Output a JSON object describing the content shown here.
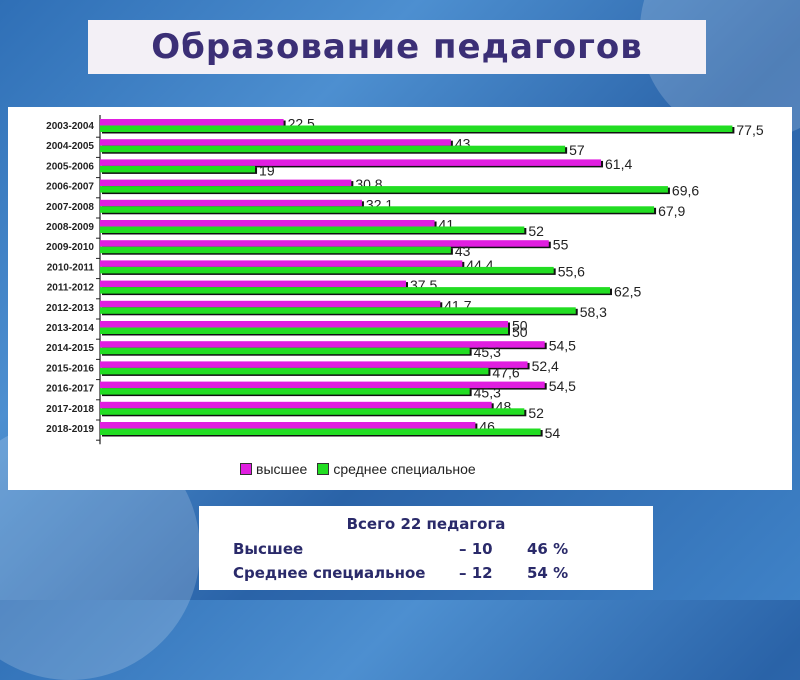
{
  "title": "Образование педагогов",
  "chart_data": {
    "type": "bar",
    "orientation": "horizontal",
    "categories": [
      "2003-2004",
      "2004-2005",
      "2005-2006",
      "2006-2007",
      "2007-2008",
      "2008-2009",
      "2009-2010",
      "2010-2011",
      "2011-2012",
      "2012-2013",
      "2013-2014",
      "2014-2015",
      "2015-2016",
      "2016-2017",
      "2017-2018",
      "2018-2019"
    ],
    "series": [
      {
        "name": "высшее",
        "color": "#e01ee0",
        "values": [
          22.5,
          43,
          61.4,
          30.8,
          32.1,
          41,
          55,
          44.4,
          37.5,
          41.7,
          50,
          54.5,
          52.4,
          54.5,
          48,
          46
        ],
        "labels": [
          "22,5",
          "43",
          "61,4",
          "30,8",
          "32,1",
          "41",
          "55",
          "44,4",
          "37,5",
          "41,7",
          "50",
          "54,5",
          "52,4",
          "54,5",
          "48",
          "46"
        ]
      },
      {
        "name": "среднее специальное",
        "color": "#22dd22",
        "values": [
          77.5,
          57,
          19,
          69.6,
          67.9,
          52,
          43,
          55.6,
          62.5,
          58.3,
          50,
          45.3,
          47.6,
          45.3,
          52,
          54
        ],
        "labels": [
          "77,5",
          "57",
          "19",
          "69,6",
          "67,9",
          "52",
          "43",
          "55,6",
          "62,5",
          "58,3",
          "50",
          "45,3",
          "47,6",
          "45,3",
          "52",
          "54"
        ]
      }
    ],
    "xlim": [
      0,
      80
    ],
    "legend_position": "bottom",
    "grid": false
  },
  "summary": {
    "title": "Всего 22 педагога",
    "rows": [
      {
        "label": "Высшее",
        "count": "– 10",
        "percent": "46 %"
      },
      {
        "label": "Среднее специальное",
        "count": "– 12",
        "percent": "54 %"
      }
    ]
  }
}
